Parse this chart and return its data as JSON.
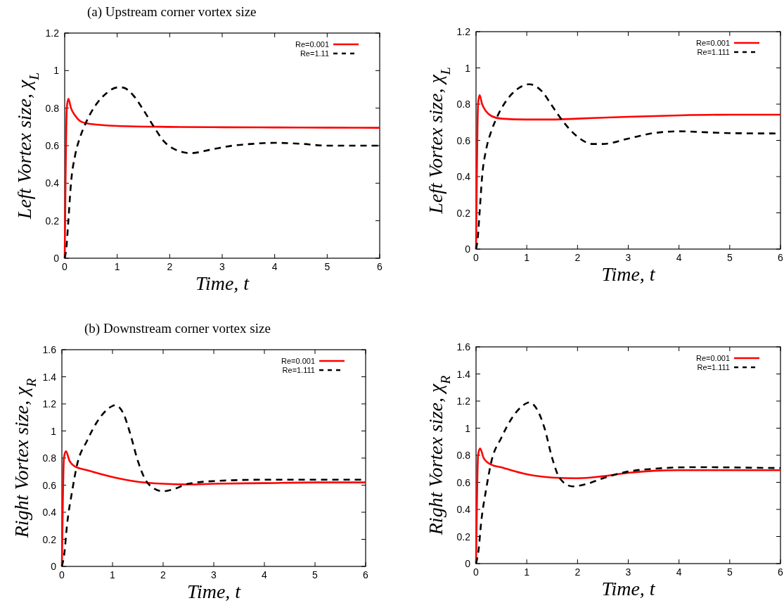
{
  "chart_data": [
    {
      "type": "line",
      "title": "(a) Upstream corner vortex size",
      "xlabel": "Time, t",
      "ylabel": "Left Vortex size, χ$_{L}$",
      "xlim": [
        0,
        6
      ],
      "xticks": [
        0,
        1,
        2,
        3,
        4,
        5,
        6
      ],
      "ylim": [
        0,
        1.2
      ],
      "yticks": [
        0,
        0.2,
        0.4,
        0.6,
        0.8,
        1,
        1.2
      ],
      "legend": "top right",
      "series": [
        {
          "name": "Re=0.001",
          "color": "#ff0000",
          "line_style": "solid",
          "x": [
            0,
            0.02,
            0.04,
            0.07,
            0.12,
            0.2,
            0.3,
            0.5,
            1,
            2,
            3,
            4,
            5,
            6
          ],
          "values": [
            0,
            0.5,
            0.8,
            0.85,
            0.8,
            0.76,
            0.73,
            0.715,
            0.705,
            0.7,
            0.698,
            0.697,
            0.696,
            0.695
          ]
        },
        {
          "name": "Re=1.11",
          "color": "#000000",
          "line_style": "dashed",
          "x": [
            0,
            0.03,
            0.07,
            0.12,
            0.2,
            0.3,
            0.4,
            0.6,
            0.8,
            1,
            1.1,
            1.3,
            1.5,
            1.7,
            1.9,
            2.1,
            2.4,
            2.8,
            3.2,
            3.6,
            4,
            4.5,
            5,
            5.5,
            6
          ],
          "values": [
            0,
            0.05,
            0.2,
            0.4,
            0.55,
            0.65,
            0.72,
            0.82,
            0.88,
            0.91,
            0.91,
            0.87,
            0.79,
            0.7,
            0.62,
            0.58,
            0.56,
            0.58,
            0.6,
            0.61,
            0.615,
            0.61,
            0.6,
            0.6,
            0.6
          ]
        }
      ]
    },
    {
      "type": "line",
      "xlabel": "Time, t",
      "ylabel": "Left Vortex size, χ$_{L}$",
      "xlim": [
        0,
        6
      ],
      "xticks": [
        0,
        1,
        2,
        3,
        4,
        5,
        6
      ],
      "ylim": [
        0,
        1.2
      ],
      "yticks": [
        0,
        0.2,
        0.4,
        0.6,
        0.8,
        1,
        1.2
      ],
      "legend": "top right",
      "series": [
        {
          "name": "Re=0.001",
          "color": "#ff0000",
          "line_style": "solid",
          "x": [
            0,
            0.02,
            0.04,
            0.07,
            0.12,
            0.2,
            0.3,
            0.5,
            1,
            1.5,
            2,
            3,
            4,
            5,
            6
          ],
          "values": [
            0,
            0.5,
            0.8,
            0.85,
            0.8,
            0.76,
            0.735,
            0.72,
            0.715,
            0.715,
            0.72,
            0.73,
            0.738,
            0.742,
            0.742
          ]
        },
        {
          "name": "Re=1.111",
          "color": "#000000",
          "line_style": "dashed",
          "x": [
            0,
            0.03,
            0.07,
            0.12,
            0.2,
            0.3,
            0.4,
            0.6,
            0.8,
            1.05,
            1.3,
            1.5,
            1.7,
            2,
            2.3,
            2.5,
            3,
            3.5,
            4,
            4.5,
            5,
            6
          ],
          "values": [
            0,
            0.05,
            0.2,
            0.4,
            0.55,
            0.65,
            0.72,
            0.82,
            0.88,
            0.91,
            0.87,
            0.79,
            0.71,
            0.62,
            0.58,
            0.58,
            0.61,
            0.64,
            0.65,
            0.645,
            0.64,
            0.638
          ]
        }
      ]
    },
    {
      "type": "line",
      "title": "(b) Downstream corner vortex size",
      "xlabel": "Time, t",
      "ylabel": "Right Vortex size, χ$_{R}$",
      "xlim": [
        0,
        6
      ],
      "xticks": [
        0,
        1,
        2,
        3,
        4,
        5,
        6
      ],
      "ylim": [
        0,
        1.6
      ],
      "yticks": [
        0,
        0.2,
        0.4,
        0.6,
        0.8,
        1,
        1.2,
        1.4,
        1.6
      ],
      "legend": "top right",
      "series": [
        {
          "name": "Re=0.001",
          "color": "#ff0000",
          "line_style": "solid",
          "x": [
            0,
            0.02,
            0.04,
            0.08,
            0.15,
            0.25,
            0.5,
            1,
            1.5,
            2,
            2.5,
            3,
            4,
            5,
            6
          ],
          "values": [
            0,
            0.5,
            0.8,
            0.85,
            0.78,
            0.74,
            0.71,
            0.66,
            0.625,
            0.61,
            0.605,
            0.61,
            0.615,
            0.62,
            0.62
          ]
        },
        {
          "name": "Re=1.111",
          "color": "#000000",
          "line_style": "dashed",
          "x": [
            0,
            0.05,
            0.1,
            0.2,
            0.3,
            0.5,
            0.7,
            0.9,
            1.05,
            1.2,
            1.35,
            1.5,
            1.65,
            1.8,
            2,
            2.2,
            2.5,
            3,
            4,
            5,
            6
          ],
          "values": [
            0,
            0.1,
            0.3,
            0.55,
            0.75,
            0.93,
            1.07,
            1.16,
            1.19,
            1.14,
            0.98,
            0.78,
            0.64,
            0.58,
            0.555,
            0.57,
            0.61,
            0.63,
            0.64,
            0.64,
            0.64
          ]
        }
      ]
    },
    {
      "type": "line",
      "xlabel": "Time, t",
      "ylabel": "Right Vortex size, χ$_{R}$",
      "xlim": [
        0,
        6
      ],
      "xticks": [
        0,
        1,
        2,
        3,
        4,
        5,
        6
      ],
      "ylim": [
        0,
        1.6
      ],
      "yticks": [
        0,
        0.2,
        0.4,
        0.6,
        0.8,
        1,
        1.2,
        1.4,
        1.6
      ],
      "legend": "top right",
      "series": [
        {
          "name": "Re=0.001",
          "color": "#ff0000",
          "line_style": "solid",
          "x": [
            0,
            0.02,
            0.04,
            0.08,
            0.15,
            0.3,
            0.5,
            1,
            1.5,
            2,
            2.5,
            3,
            3.5,
            4,
            5,
            6
          ],
          "values": [
            0,
            0.5,
            0.8,
            0.85,
            0.78,
            0.73,
            0.71,
            0.66,
            0.635,
            0.63,
            0.645,
            0.67,
            0.685,
            0.69,
            0.69,
            0.69
          ]
        },
        {
          "name": "Re=1.111",
          "color": "#000000",
          "line_style": "dashed",
          "x": [
            0,
            0.05,
            0.1,
            0.2,
            0.3,
            0.5,
            0.7,
            0.9,
            1.05,
            1.2,
            1.35,
            1.5,
            1.65,
            1.9,
            2.2,
            2.5,
            3,
            3.5,
            4,
            4.5,
            5,
            6
          ],
          "values": [
            0,
            0.1,
            0.3,
            0.55,
            0.75,
            0.93,
            1.07,
            1.16,
            1.19,
            1.14,
            1.0,
            0.78,
            0.63,
            0.57,
            0.59,
            0.63,
            0.68,
            0.7,
            0.71,
            0.712,
            0.71,
            0.705
          ]
        }
      ]
    }
  ]
}
